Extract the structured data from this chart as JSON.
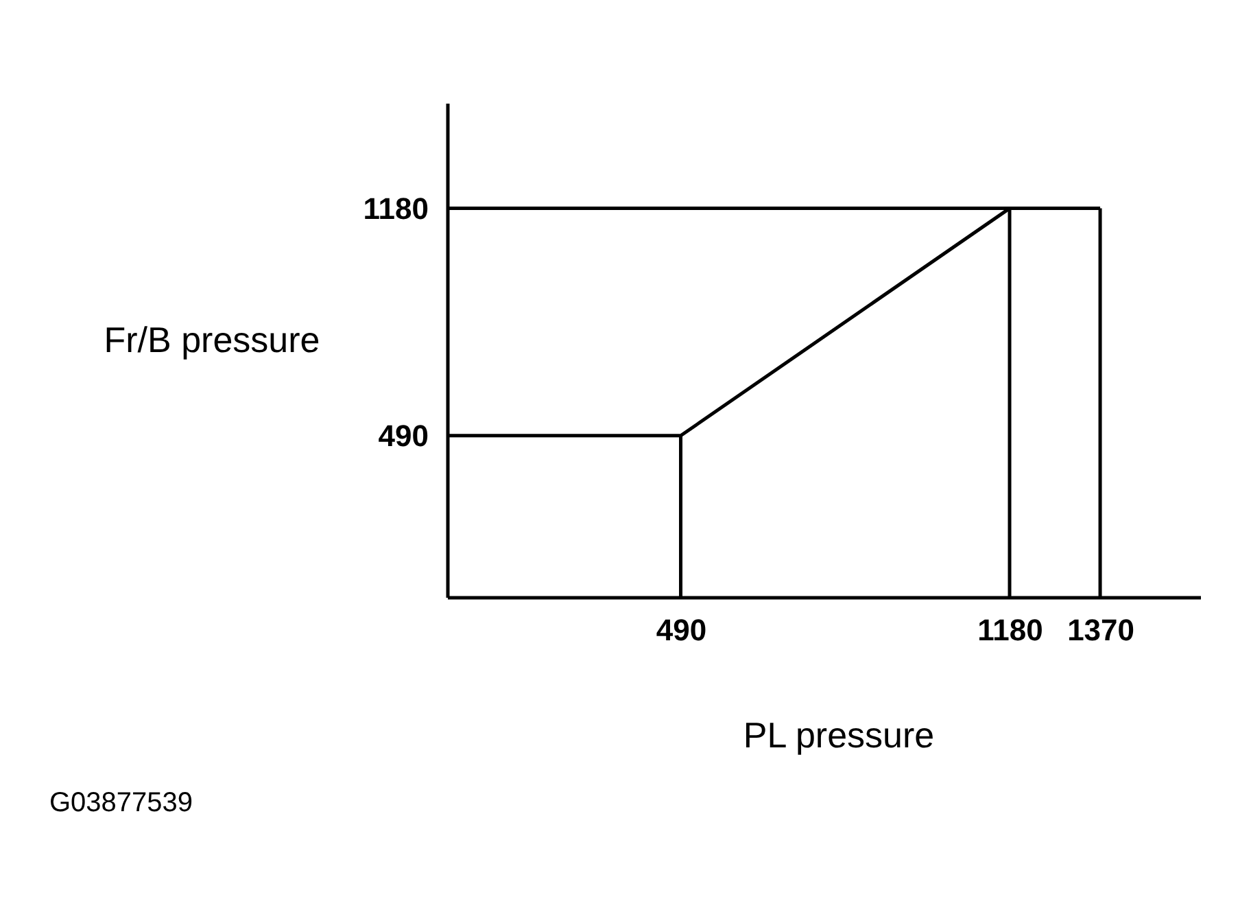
{
  "chart_data": {
    "type": "line",
    "xlabel": "PL pressure",
    "ylabel": "Fr/B pressure",
    "annotations": [
      "G03877539"
    ],
    "xlim": [
      0,
      1580
    ],
    "xticks": [
      490,
      1180,
      1370
    ],
    "ylim": [
      0,
      1500
    ],
    "yticks": [
      490,
      1180
    ],
    "grid": false,
    "legend": false,
    "marker": "none",
    "line_style": "solid",
    "series": [
      {
        "color": "#000000",
        "x": [
          0,
          490,
          1180,
          1370
        ],
        "values": [
          490,
          490,
          1180,
          1180
        ]
      },
      {
        "color": "#000000",
        "x": [
          0,
          1180
        ],
        "values": [
          1180,
          1180
        ]
      },
      {
        "color": "#000000",
        "x": [
          490,
          490
        ],
        "values": [
          0,
          490
        ]
      },
      {
        "color": "#000000",
        "x": [
          1180,
          1180
        ],
        "values": [
          0,
          1180
        ]
      },
      {
        "color": "#000000",
        "x": [
          1370,
          1370
        ],
        "values": [
          0,
          1180
        ]
      }
    ]
  }
}
